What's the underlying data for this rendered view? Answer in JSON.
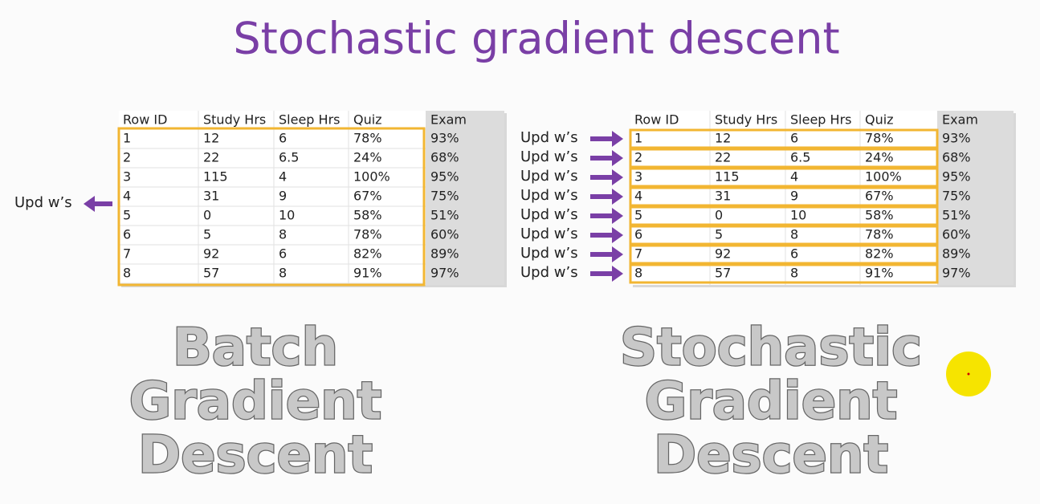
{
  "title": "Stochastic gradient descent",
  "tables": [
    {
      "header": [
        "Row ID",
        "Study Hrs",
        "Sleep Hrs",
        "Quiz",
        "Exam"
      ],
      "rows": [
        [
          "1",
          "12",
          "6",
          "78%",
          "93%"
        ],
        [
          "2",
          "22",
          "6.5",
          "24%",
          "68%"
        ],
        [
          "3",
          "115",
          "4",
          "100%",
          "95%"
        ],
        [
          "4",
          "31",
          "9",
          "67%",
          "75%"
        ],
        [
          "5",
          "0",
          "10",
          "58%",
          "51%"
        ],
        [
          "6",
          "5",
          "8",
          "78%",
          "60%"
        ],
        [
          "7",
          "92",
          "6",
          "82%",
          "89%"
        ],
        [
          "8",
          "57",
          "8",
          "91%",
          "97%"
        ]
      ]
    },
    {
      "header": [
        "Row ID",
        "Study Hrs",
        "Sleep Hrs",
        "Quiz",
        "Exam"
      ],
      "rows": [
        [
          "1",
          "12",
          "6",
          "78%",
          "93%"
        ],
        [
          "2",
          "22",
          "6.5",
          "24%",
          "68%"
        ],
        [
          "3",
          "115",
          "4",
          "100%",
          "95%"
        ],
        [
          "4",
          "31",
          "9",
          "67%",
          "75%"
        ],
        [
          "5",
          "0",
          "10",
          "58%",
          "51%"
        ],
        [
          "6",
          "5",
          "8",
          "78%",
          "60%"
        ],
        [
          "7",
          "92",
          "6",
          "82%",
          "89%"
        ],
        [
          "8",
          "57",
          "8",
          "91%",
          "97%"
        ]
      ]
    }
  ],
  "batch": {
    "update_label": "Upd w’s",
    "caption": [
      "Batch",
      "Gradient",
      "Descent"
    ]
  },
  "stochastic": {
    "update_labels": [
      "Upd w’s",
      "Upd w’s",
      "Upd w’s",
      "Upd w’s",
      "Upd w’s",
      "Upd w’s",
      "Upd w’s",
      "Upd w’s"
    ],
    "caption": [
      "Stochastic",
      "Gradient",
      "Descent"
    ]
  }
}
